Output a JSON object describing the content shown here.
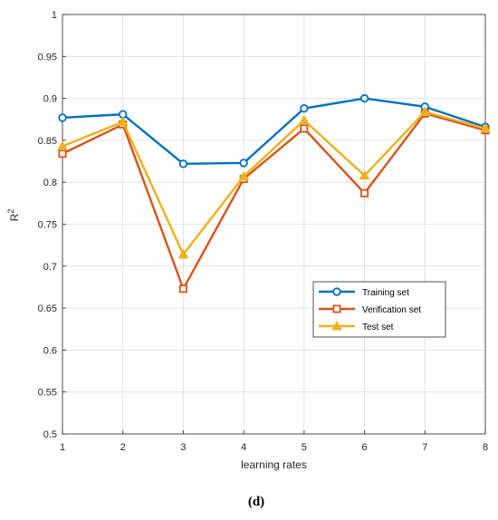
{
  "chart_data": {
    "type": "line",
    "title": "",
    "xlabel": "learning rates",
    "ylabel": "R",
    "ylabel_superscript": "2",
    "x": [
      1,
      2,
      3,
      4,
      5,
      6,
      7,
      8
    ],
    "xlim": [
      1,
      8
    ],
    "ylim": [
      0.5,
      1
    ],
    "yticks": [
      0.5,
      0.55,
      0.6,
      0.65,
      0.7,
      0.75,
      0.8,
      0.85,
      0.9,
      0.95,
      1
    ],
    "ytick_labels": [
      "0.5",
      "0.55",
      "0.6",
      "0.65",
      "0.7",
      "0.75",
      "0.8",
      "0.85",
      "0.9",
      "0.95",
      "1"
    ],
    "xtick_labels": [
      "1",
      "2",
      "3",
      "4",
      "5",
      "6",
      "7",
      "8"
    ],
    "grid": true,
    "legend_position": "lower-right",
    "series": [
      {
        "name": "Training set",
        "marker": "circle",
        "color": "#0072BD",
        "values": [
          0.877,
          0.881,
          0.822,
          0.823,
          0.888,
          0.9,
          0.89,
          0.866
        ]
      },
      {
        "name": "Verification set",
        "marker": "square",
        "color": "#D95319",
        "values": [
          0.834,
          0.869,
          0.673,
          0.804,
          0.864,
          0.787,
          0.882,
          0.862
        ]
      },
      {
        "name": "Test set",
        "marker": "triangle",
        "color": "#EDB120",
        "values": [
          0.843,
          0.872,
          0.714,
          0.807,
          0.874,
          0.808,
          0.884,
          0.864
        ]
      }
    ],
    "caption": "(d)"
  }
}
